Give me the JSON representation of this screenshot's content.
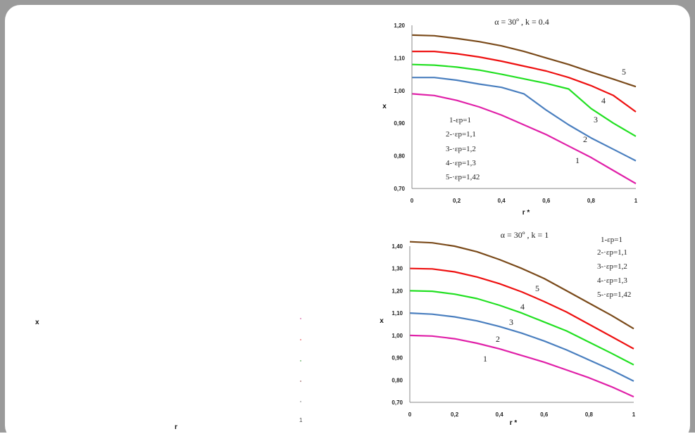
{
  "chart_data": [
    {
      "type": "line",
      "title": "α = 30º ,  k = 0.4",
      "xlabel": "r *",
      "ylabel": "x",
      "xlim": [
        0,
        1
      ],
      "ylim": [
        0.7,
        1.2
      ],
      "x_ticks": [
        "0",
        "0,2",
        "0,4",
        "0,6",
        "0,8",
        "1"
      ],
      "y_ticks": [
        "0,70",
        "0,80",
        "0,90",
        "1,00",
        "1,10",
        "1,20"
      ],
      "legend": [
        "1-εp=1",
        "2-·εp=1,1",
        "3-·εp=1,2",
        "4-·εp=1,3",
        "5-·εp=1,42"
      ],
      "curve_labels": [
        "1",
        "2",
        "3",
        "4",
        "5"
      ],
      "series": [
        {
          "name": "1",
          "color": "#e020a8",
          "x": [
            0,
            0.1,
            0.2,
            0.3,
            0.4,
            0.5,
            0.6,
            0.7,
            0.8,
            0.9,
            1.0
          ],
          "y": [
            0.99,
            0.985,
            0.97,
            0.95,
            0.925,
            0.895,
            0.865,
            0.83,
            0.795,
            0.755,
            0.715
          ]
        },
        {
          "name": "2",
          "color": "#4a7fbf",
          "x": [
            0,
            0.1,
            0.2,
            0.3,
            0.4,
            0.5,
            0.6,
            0.7,
            0.8,
            0.9,
            1.0
          ],
          "y": [
            1.04,
            1.04,
            1.032,
            1.02,
            1.01,
            0.99,
            0.94,
            0.895,
            0.855,
            0.82,
            0.785
          ]
        },
        {
          "name": "3",
          "color": "#22e022",
          "x": [
            0,
            0.1,
            0.2,
            0.3,
            0.4,
            0.5,
            0.6,
            0.7,
            0.8,
            0.9,
            1.0
          ],
          "y": [
            1.08,
            1.078,
            1.072,
            1.063,
            1.05,
            1.036,
            1.022,
            1.005,
            0.945,
            0.9,
            0.86
          ]
        },
        {
          "name": "4",
          "color": "#ee1111",
          "x": [
            0,
            0.1,
            0.2,
            0.3,
            0.4,
            0.5,
            0.6,
            0.7,
            0.8,
            0.9,
            1.0
          ],
          "y": [
            1.12,
            1.12,
            1.113,
            1.103,
            1.09,
            1.075,
            1.06,
            1.04,
            1.015,
            0.985,
            0.935
          ]
        },
        {
          "name": "5",
          "color": "#7a4a1a",
          "x": [
            0,
            0.1,
            0.2,
            0.3,
            0.4,
            0.5,
            0.6,
            0.7,
            0.8,
            0.9,
            1.0
          ],
          "y": [
            1.17,
            1.168,
            1.16,
            1.15,
            1.137,
            1.12,
            1.1,
            1.08,
            1.057,
            1.035,
            1.012
          ]
        }
      ]
    },
    {
      "type": "line",
      "title": "α = 30º ,  k = 1",
      "xlabel": "r *",
      "ylabel": "x",
      "xlim": [
        0,
        1
      ],
      "ylim": [
        0.7,
        1.4
      ],
      "x_ticks": [
        "0",
        "0,2",
        "0,4",
        "0,6",
        "0,8",
        "1"
      ],
      "y_ticks": [
        "0,70",
        "0,80",
        "0,90",
        "1,00",
        "1,10",
        "1,20",
        "1,30",
        "1,40"
      ],
      "legend": [
        "1-εp=1",
        "2-·εp=1,1",
        "3-·εp=1,2",
        "4-·εp=1,3",
        "5-·εp=1,42"
      ],
      "curve_labels": [
        "1",
        "2",
        "3",
        "4",
        "5"
      ],
      "series": [
        {
          "name": "1",
          "color": "#e020a8",
          "x": [
            0,
            0.1,
            0.2,
            0.3,
            0.4,
            0.5,
            0.6,
            0.7,
            0.8,
            0.9,
            1.0
          ],
          "y": [
            1.0,
            0.997,
            0.985,
            0.965,
            0.94,
            0.91,
            0.88,
            0.845,
            0.81,
            0.77,
            0.725
          ]
        },
        {
          "name": "2",
          "color": "#4a7fbf",
          "x": [
            0,
            0.1,
            0.2,
            0.3,
            0.4,
            0.5,
            0.6,
            0.7,
            0.8,
            0.9,
            1.0
          ],
          "y": [
            1.1,
            1.095,
            1.083,
            1.065,
            1.04,
            1.01,
            0.975,
            0.935,
            0.89,
            0.845,
            0.795
          ]
        },
        {
          "name": "3",
          "color": "#22e022",
          "x": [
            0,
            0.1,
            0.2,
            0.3,
            0.4,
            0.5,
            0.6,
            0.7,
            0.8,
            0.9,
            1.0
          ],
          "y": [
            1.2,
            1.198,
            1.185,
            1.165,
            1.135,
            1.1,
            1.06,
            1.02,
            0.97,
            0.92,
            0.868
          ]
        },
        {
          "name": "4",
          "color": "#ee1111",
          "x": [
            0,
            0.1,
            0.2,
            0.3,
            0.4,
            0.5,
            0.6,
            0.7,
            0.8,
            0.9,
            1.0
          ],
          "y": [
            1.3,
            1.298,
            1.285,
            1.262,
            1.232,
            1.195,
            1.152,
            1.105,
            1.05,
            0.995,
            0.94
          ]
        },
        {
          "name": "5",
          "color": "#7a4a1a",
          "x": [
            0,
            0.1,
            0.2,
            0.3,
            0.4,
            0.5,
            0.6,
            0.7,
            0.8,
            0.9,
            1.0
          ],
          "y": [
            1.42,
            1.415,
            1.4,
            1.375,
            1.34,
            1.3,
            1.255,
            1.2,
            1.145,
            1.09,
            1.03
          ]
        }
      ]
    }
  ],
  "stray_left": {
    "y_label": "x",
    "x_label": "r",
    "tick_end": "1"
  }
}
